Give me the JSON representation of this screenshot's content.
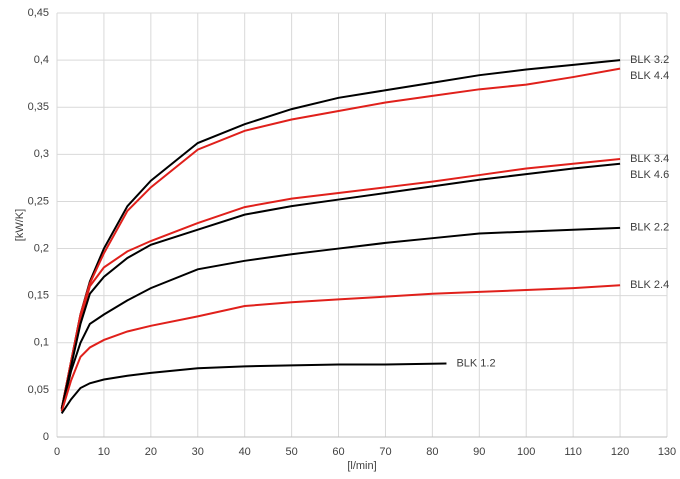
{
  "chart_data": {
    "type": "line",
    "x_label": "[l/min]",
    "y_label": "[kW/K]",
    "grid": true,
    "xlim": [
      0,
      130
    ],
    "xticks": [
      0,
      10,
      20,
      30,
      40,
      50,
      60,
      70,
      80,
      90,
      100,
      110,
      120,
      130
    ],
    "ylim": [
      0,
      0.45
    ],
    "yticks": [
      0,
      {
        "value": 0.05,
        "label": "0,05"
      },
      {
        "value": 0.1,
        "label": "0,1"
      },
      {
        "value": 0.15,
        "label": "0,15"
      },
      {
        "value": 0.2,
        "label": "0,2"
      },
      {
        "value": 0.25,
        "label": "0,25"
      },
      {
        "value": 0.3,
        "label": "0,3"
      },
      {
        "value": 0.35,
        "label": "0,35"
      },
      {
        "value": 0.4,
        "label": "0,4"
      },
      {
        "value": 0.45,
        "label": "0,45"
      }
    ],
    "series": [
      {
        "name": "BLK 3.2",
        "color": "#000000",
        "x": [
          1,
          3,
          5,
          7,
          10,
          15,
          20,
          30,
          40,
          50,
          60,
          70,
          80,
          90,
          100,
          110,
          120
        ],
        "values": [
          0.03,
          0.08,
          0.13,
          0.165,
          0.2,
          0.245,
          0.272,
          0.312,
          0.332,
          0.348,
          0.36,
          0.368,
          0.376,
          0.384,
          0.39,
          0.395,
          0.4
        ]
      },
      {
        "name": "BLK 4.4",
        "color": "#e0201b",
        "x": [
          1,
          3,
          5,
          7,
          10,
          15,
          20,
          30,
          40,
          50,
          60,
          70,
          80,
          90,
          100,
          110,
          120
        ],
        "values": [
          0.03,
          0.08,
          0.13,
          0.163,
          0.195,
          0.24,
          0.265,
          0.305,
          0.325,
          0.337,
          0.346,
          0.355,
          0.362,
          0.369,
          0.374,
          0.382,
          0.391
        ]
      },
      {
        "name": "BLK 3.4",
        "color": "#e0201b",
        "x": [
          1,
          3,
          5,
          7,
          10,
          15,
          20,
          30,
          40,
          50,
          60,
          70,
          80,
          90,
          100,
          110,
          120
        ],
        "values": [
          0.03,
          0.08,
          0.125,
          0.16,
          0.18,
          0.197,
          0.208,
          0.227,
          0.244,
          0.253,
          0.259,
          0.265,
          0.271,
          0.278,
          0.285,
          0.29,
          0.295
        ]
      },
      {
        "name": "BLK 4.6",
        "color": "#000000",
        "x": [
          1,
          3,
          5,
          7,
          10,
          15,
          20,
          30,
          40,
          50,
          60,
          70,
          80,
          90,
          100,
          110,
          120
        ],
        "values": [
          0.03,
          0.075,
          0.12,
          0.152,
          0.17,
          0.19,
          0.204,
          0.22,
          0.236,
          0.245,
          0.252,
          0.259,
          0.266,
          0.273,
          0.279,
          0.285,
          0.29
        ]
      },
      {
        "name": "BLK 2.2",
        "color": "#000000",
        "x": [
          1,
          3,
          5,
          7,
          10,
          15,
          20,
          30,
          40,
          50,
          60,
          70,
          80,
          90,
          100,
          110,
          120
        ],
        "values": [
          0.028,
          0.07,
          0.1,
          0.12,
          0.13,
          0.145,
          0.158,
          0.178,
          0.187,
          0.194,
          0.2,
          0.206,
          0.211,
          0.216,
          0.218,
          0.22,
          0.222
        ]
      },
      {
        "name": "BLK 2.4",
        "color": "#e0201b",
        "x": [
          1,
          3,
          5,
          7,
          10,
          15,
          20,
          30,
          40,
          50,
          60,
          70,
          80,
          90,
          100,
          110,
          120
        ],
        "values": [
          0.027,
          0.06,
          0.085,
          0.095,
          0.103,
          0.112,
          0.118,
          0.128,
          0.139,
          0.143,
          0.146,
          0.149,
          0.152,
          0.154,
          0.156,
          0.158,
          0.161
        ]
      },
      {
        "name": "BLK 1.2",
        "color": "#000000",
        "x": [
          1,
          3,
          5,
          7,
          10,
          15,
          20,
          30,
          40,
          50,
          60,
          70,
          83
        ],
        "values": [
          0.025,
          0.04,
          0.052,
          0.057,
          0.061,
          0.065,
          0.068,
          0.073,
          0.075,
          0.076,
          0.077,
          0.077,
          0.078
        ]
      }
    ]
  }
}
